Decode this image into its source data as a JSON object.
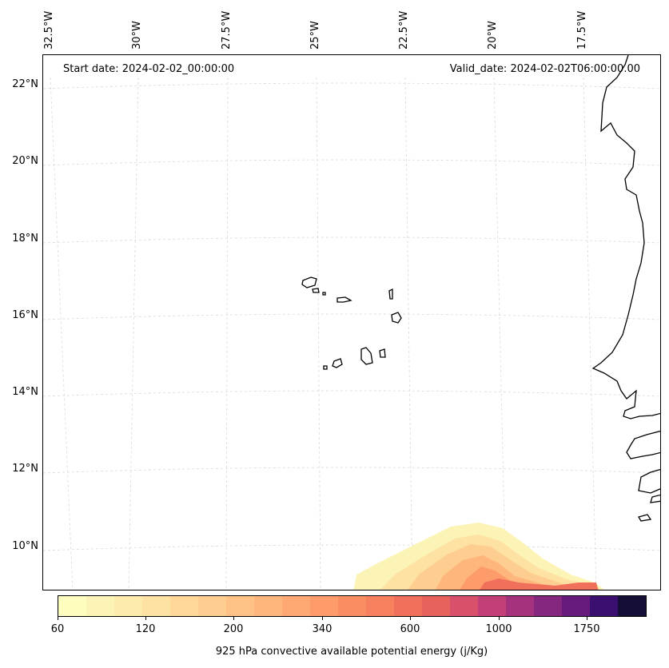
{
  "map": {
    "start_date_text": "Start date: 2024-02-02_00:00:00",
    "valid_date_text": "Valid_date: 2024-02-02T06:00:00.00",
    "longitude_labels": [
      "32.5°W",
      "30°W",
      "27.5°W",
      "25°W",
      "22.5°W",
      "20°W",
      "17.5°W"
    ],
    "latitude_labels": [
      "22°N",
      "20°N",
      "18°N",
      "16°N",
      "14°N",
      "12°N",
      "10°N"
    ],
    "gridline_color": "#d9d9d9",
    "coastline_color": "#000000"
  },
  "colorbar": {
    "label": "925 hPa convective available potential energy (j/Kg)",
    "tick_labels": [
      "60",
      "120",
      "200",
      "340",
      "600",
      "1000",
      "1750"
    ],
    "colors": [
      "#fcfdbf",
      "#fcf4b6",
      "#fdebac",
      "#fde2a3",
      "#fed799",
      "#fecd90",
      "#fec287",
      "#feb67c",
      "#fea973",
      "#fd9b6b",
      "#fb8d63",
      "#f7805f",
      "#f1705c",
      "#e8625d",
      "#d8506b",
      "#c23f77",
      "#a5327d",
      "#85277e",
      "#661a7c",
      "#3b0f70",
      "#150e37"
    ]
  }
}
